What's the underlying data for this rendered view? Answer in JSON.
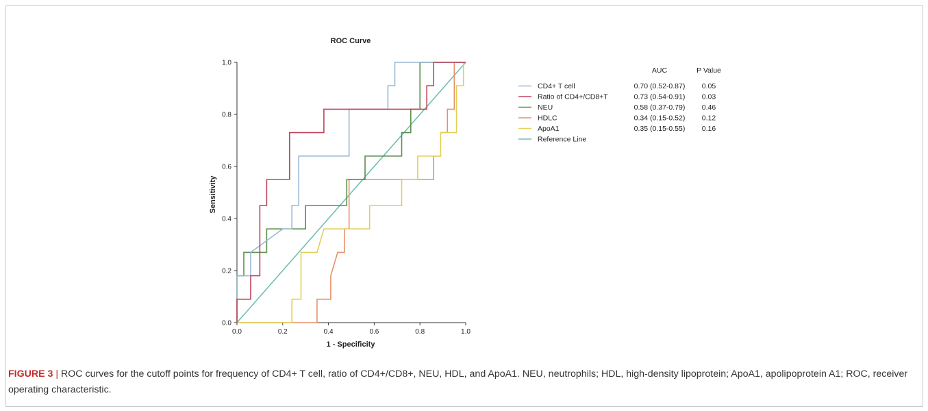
{
  "chart_data": {
    "type": "line",
    "title": "ROC Curve",
    "xlabel": "1 - Specificity",
    "ylabel": "Sensitivity",
    "xlim": [
      0,
      1
    ],
    "ylim": [
      0,
      1
    ],
    "x_ticks": [
      "0.0",
      "0.2",
      "0.4",
      "0.6",
      "0.8",
      "1.0"
    ],
    "y_ticks": [
      "0.0",
      "0.2",
      "0.4",
      "0.6",
      "0.8",
      "1.0"
    ],
    "grid": false,
    "legend_position": "right",
    "legend_headers": {
      "auc": "AUC",
      "p": "P Value"
    },
    "series": [
      {
        "name": "CD4+ T cell",
        "auc": "0.70 (0.52-0.87)",
        "p": "0.05",
        "color": "#9ab8d6",
        "points": [
          [
            0,
            0
          ],
          [
            0,
            0.18
          ],
          [
            0.06,
            0.18
          ],
          [
            0.06,
            0.27
          ],
          [
            0.2,
            0.36
          ],
          [
            0.24,
            0.36
          ],
          [
            0.24,
            0.45
          ],
          [
            0.27,
            0.45
          ],
          [
            0.27,
            0.64
          ],
          [
            0.49,
            0.64
          ],
          [
            0.49,
            0.82
          ],
          [
            0.66,
            0.82
          ],
          [
            0.66,
            0.91
          ],
          [
            0.69,
            0.91
          ],
          [
            0.69,
            1.0
          ],
          [
            1,
            1
          ]
        ]
      },
      {
        "name": "Ratio of CD4+/CD8+T",
        "auc": "0.73 (0.54-0.91)",
        "p": "0.03",
        "color": "#c0445a",
        "points": [
          [
            0,
            0
          ],
          [
            0,
            0.09
          ],
          [
            0.06,
            0.09
          ],
          [
            0.06,
            0.18
          ],
          [
            0.1,
            0.18
          ],
          [
            0.1,
            0.45
          ],
          [
            0.13,
            0.45
          ],
          [
            0.13,
            0.55
          ],
          [
            0.23,
            0.55
          ],
          [
            0.23,
            0.73
          ],
          [
            0.38,
            0.73
          ],
          [
            0.38,
            0.82
          ],
          [
            0.83,
            0.82
          ],
          [
            0.83,
            0.91
          ],
          [
            0.86,
            0.91
          ],
          [
            0.86,
            1.0
          ],
          [
            1,
            1
          ]
        ]
      },
      {
        "name": "NEU",
        "auc": "0.58 (0.37-0.79)",
        "p": "0.46",
        "color": "#5a8f4e",
        "points": [
          [
            0,
            0
          ],
          [
            0,
            0.18
          ],
          [
            0.03,
            0.18
          ],
          [
            0.03,
            0.27
          ],
          [
            0.1,
            0.27
          ],
          [
            0.13,
            0.27
          ],
          [
            0.13,
            0.36
          ],
          [
            0.3,
            0.36
          ],
          [
            0.3,
            0.45
          ],
          [
            0.48,
            0.45
          ],
          [
            0.48,
            0.55
          ],
          [
            0.56,
            0.55
          ],
          [
            0.56,
            0.64
          ],
          [
            0.72,
            0.64
          ],
          [
            0.72,
            0.73
          ],
          [
            0.76,
            0.73
          ],
          [
            0.76,
            0.82
          ],
          [
            0.8,
            0.82
          ],
          [
            0.8,
            1.0
          ],
          [
            1,
            1
          ]
        ]
      },
      {
        "name": "HDLC",
        "auc": "0.34 (0.15-0.52)",
        "p": "0.12",
        "color": "#e8906a",
        "points": [
          [
            0,
            0
          ],
          [
            0.35,
            0
          ],
          [
            0.35,
            0.09
          ],
          [
            0.41,
            0.09
          ],
          [
            0.41,
            0.18
          ],
          [
            0.44,
            0.27
          ],
          [
            0.47,
            0.27
          ],
          [
            0.47,
            0.36
          ],
          [
            0.49,
            0.36
          ],
          [
            0.49,
            0.55
          ],
          [
            0.86,
            0.55
          ],
          [
            0.86,
            0.64
          ],
          [
            0.89,
            0.64
          ],
          [
            0.89,
            0.73
          ],
          [
            0.92,
            0.73
          ],
          [
            0.92,
            0.82
          ],
          [
            0.95,
            0.82
          ],
          [
            0.95,
            1.0
          ],
          [
            1,
            1
          ]
        ]
      },
      {
        "name": "ApoA1",
        "auc": "0.35 (0.15-0.55)",
        "p": "0.16",
        "color": "#e3cf55",
        "points": [
          [
            0,
            0
          ],
          [
            0.24,
            0
          ],
          [
            0.24,
            0.09
          ],
          [
            0.28,
            0.09
          ],
          [
            0.28,
            0.27
          ],
          [
            0.3,
            0.27
          ],
          [
            0.35,
            0.27
          ],
          [
            0.38,
            0.36
          ],
          [
            0.49,
            0.36
          ],
          [
            0.58,
            0.36
          ],
          [
            0.58,
            0.45
          ],
          [
            0.72,
            0.45
          ],
          [
            0.72,
            0.55
          ],
          [
            0.79,
            0.55
          ],
          [
            0.79,
            0.64
          ],
          [
            0.89,
            0.64
          ],
          [
            0.89,
            0.73
          ],
          [
            0.96,
            0.73
          ],
          [
            0.96,
            0.91
          ],
          [
            0.99,
            0.91
          ],
          [
            0.99,
            1.0
          ],
          [
            1,
            1
          ]
        ]
      },
      {
        "name": "Reference Line",
        "auc": "",
        "p": "",
        "color": "#6fbfb2",
        "points": [
          [
            0,
            0
          ],
          [
            1,
            1
          ]
        ]
      }
    ]
  },
  "caption": {
    "label": "FIGURE 3",
    "separator": " | ",
    "text": "ROC curves for the cutoff points for frequency of CD4+ T cell, ratio of CD4+/CD8+, NEU, HDL, and ApoA1. NEU, neutrophils; HDL, high-density lipoprotein; ApoA1, apolipoprotein A1; ROC, receiver operating characteristic."
  }
}
